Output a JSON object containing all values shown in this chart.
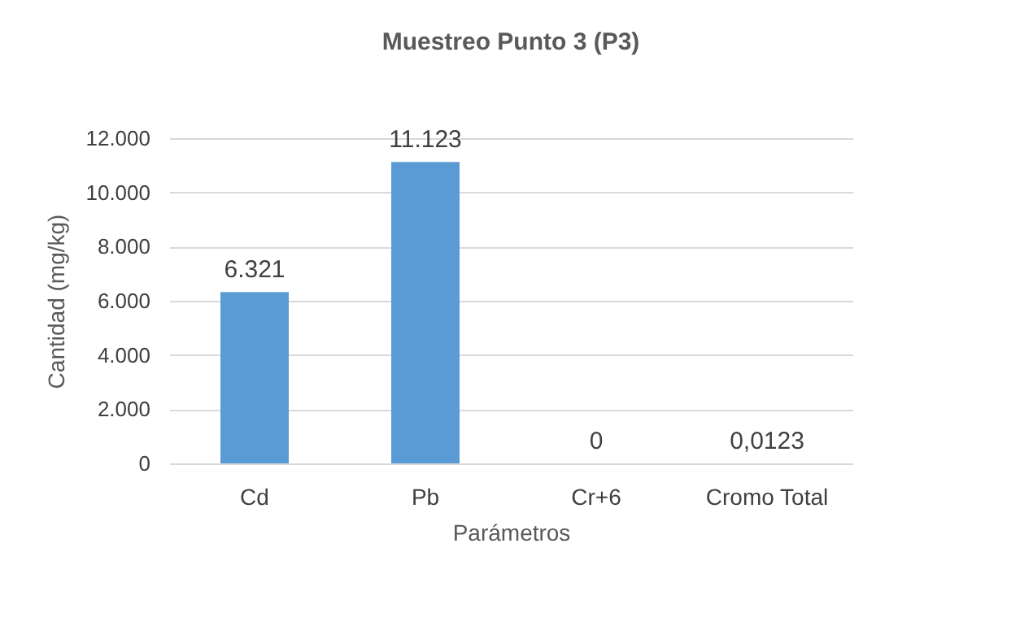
{
  "chart_data": {
    "type": "bar",
    "title": "Muestreo Punto 3 (P3)",
    "xlabel": "Parámetros",
    "ylabel": "Cantidad (mg/kg)",
    "categories": [
      "Cd",
      "Pb",
      "Cr+6",
      "Cromo Total"
    ],
    "values": [
      6321,
      11123,
      0,
      0.0123
    ],
    "value_labels": [
      "6.321",
      "11.123",
      "0",
      "0,0123"
    ],
    "color": "#5b9bd5",
    "ylim": [
      0,
      12000
    ],
    "yticks": [
      0,
      {
        "value": 2000,
        "label": "2.000"
      },
      {
        "value": 4000,
        "label": "4.000"
      },
      {
        "value": 6000,
        "label": "6.000"
      },
      {
        "value": 8000,
        "label": "8.000"
      },
      {
        "value": 10000,
        "label": "10.000"
      },
      {
        "value": 12000,
        "label": "12.000"
      }
    ],
    "grid": "y"
  }
}
